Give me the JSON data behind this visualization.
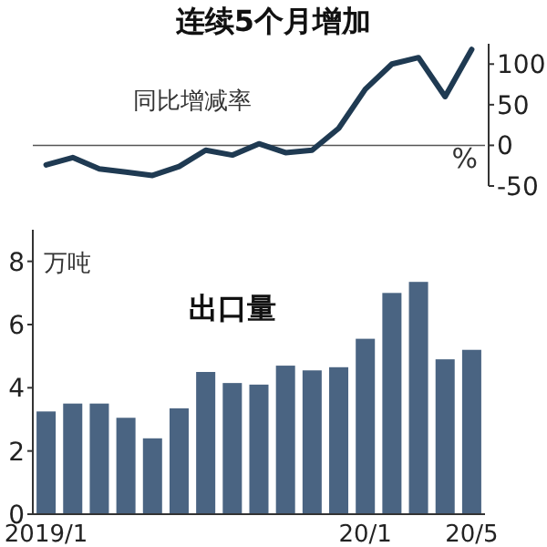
{
  "chart_data": [
    {
      "type": "line",
      "title": "连续5个月增加",
      "ylabel": "%",
      "categories": [
        null,
        null,
        null,
        null,
        null,
        null,
        null,
        null,
        null,
        null,
        null,
        null,
        null,
        null,
        null,
        null,
        null
      ],
      "series": [
        {
          "name": "同比增减率",
          "color": "#1f3a52",
          "values": [
            -24,
            -15,
            -29,
            -33,
            -37,
            -26,
            -6,
            -12,
            2,
            -9,
            -6,
            21,
            69,
            100,
            108,
            60,
            118
          ]
        }
      ],
      "ylim": [
        -50,
        125
      ],
      "yticks": [
        -50,
        0,
        50,
        100
      ],
      "tick_labels": "y",
      "ref_lines": [
        {
          "axis": "y",
          "value": 0,
          "color": "#555555"
        }
      ],
      "marker": "none",
      "line_style": "solid"
    },
    {
      "type": "bar",
      "title": "出口量",
      "ylabel": "万吨",
      "categories": [
        "2019/1",
        null,
        null,
        null,
        null,
        null,
        null,
        null,
        null,
        null,
        null,
        null,
        "20/1",
        null,
        null,
        null,
        "20/5"
      ],
      "values": [
        3.25,
        3.5,
        3.5,
        3.05,
        2.4,
        3.35,
        4.5,
        4.15,
        4.1,
        4.7,
        4.55,
        4.65,
        5.55,
        7.0,
        7.35,
        4.9,
        5.2
      ],
      "color": "#4a6482",
      "ylim": [
        0,
        9
      ],
      "yticks": [
        0,
        2,
        4,
        6,
        8
      ]
    }
  ]
}
